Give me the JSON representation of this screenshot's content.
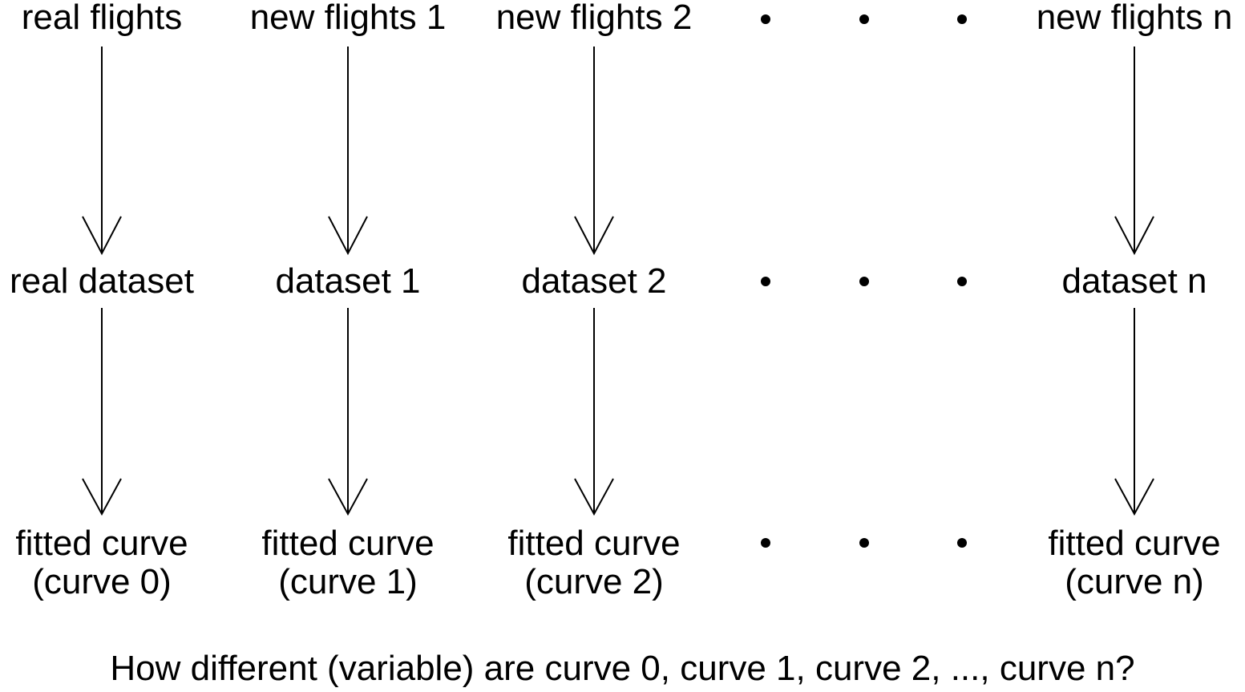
{
  "columns": [
    {
      "source": "real flights",
      "dataset": "real dataset",
      "curve_line1": "fitted curve",
      "curve_line2": "(curve 0)"
    },
    {
      "source": "new flights 1",
      "dataset": "dataset 1",
      "curve_line1": "fitted curve",
      "curve_line2": "(curve 1)"
    },
    {
      "source": "new flights 2",
      "dataset": "dataset 2",
      "curve_line1": "fitted curve",
      "curve_line2": "(curve 2)"
    },
    {
      "source": "new flights n",
      "dataset": "dataset n",
      "curve_line1": "fitted curve",
      "curve_line2": "(curve n)"
    }
  ],
  "question": "How different (variable) are curve 0, curve 1, curve 2, ..., curve n?"
}
